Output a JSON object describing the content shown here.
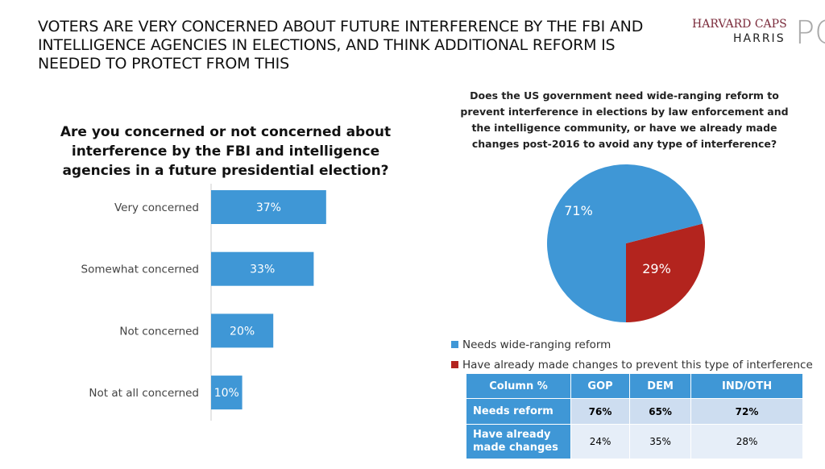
{
  "title": "VOTERS ARE VERY CONCERNED ABOUT FUTURE INTERFERENCE BY THE FBI AND INTELLIGENCE AGENCIES IN ELECTIONS, AND THINK ADDITIONAL REFORM IS NEEDED TO PROTECT FROM THIS",
  "logo": {
    "line1": "HARVARD CAPS",
    "line2": "HARRIS",
    "mark": "PC"
  },
  "colors": {
    "blue": "#3f97d6",
    "red": "#b3241e"
  },
  "chart_data": [
    {
      "type": "bar",
      "orientation": "horizontal",
      "title": "Are you concerned or not concerned about interference by the FBI and intelligence agencies in a future presidential election?",
      "categories": [
        "Very concerned",
        "Somewhat concerned",
        "Not concerned",
        "Not at all concerned"
      ],
      "values": [
        37,
        33,
        20,
        10
      ],
      "labels": [
        "37%",
        "33%",
        "20%",
        "10%"
      ],
      "xlim": [
        0,
        100
      ]
    },
    {
      "type": "pie",
      "title": "Does the US government need wide-ranging reform to prevent interference in elections by law enforcement and the intelligence community, or have we already made changes post-2016 to avoid any type of interference?",
      "series": [
        {
          "name": "Needs wide-ranging reform",
          "value": 71,
          "label": "71%",
          "color": "#3f97d6"
        },
        {
          "name": "Have already made changes to prevent this type of interference",
          "value": 29,
          "label": "29%",
          "color": "#b3241e"
        }
      ],
      "legend": "bottom"
    },
    {
      "type": "table",
      "header": [
        "Column %",
        "GOP",
        "DEM",
        "IND/OTH"
      ],
      "rows": [
        [
          "Needs reform",
          "76%",
          "65%",
          "72%"
        ],
        [
          "Have already made changes",
          "24%",
          "35%",
          "28%"
        ]
      ]
    }
  ]
}
